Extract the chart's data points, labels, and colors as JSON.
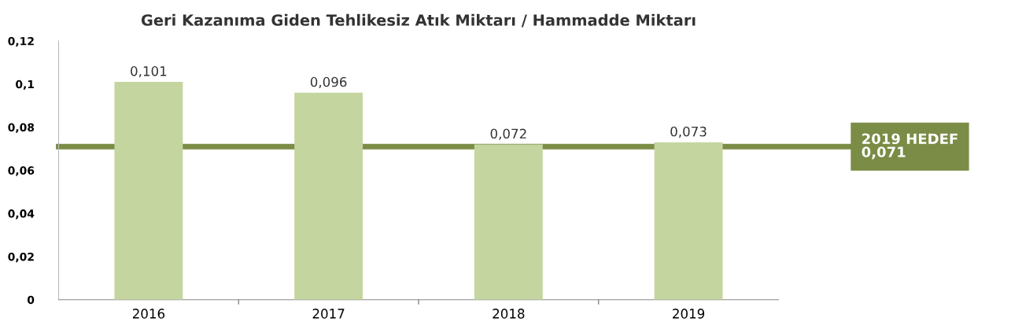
{
  "chart_data": {
    "type": "bar",
    "title": "Geri Kazanıma Giden Tehlikesiz Atık Miktarı / Hammadde Miktarı",
    "categories": [
      "2016",
      "2017",
      "2018",
      "2019"
    ],
    "values": [
      0.101,
      0.096,
      0.072,
      0.073
    ],
    "value_labels": [
      "0,101",
      "0,096",
      "0,072",
      "0,073"
    ],
    "color": "#c5d5a0",
    "ylim": [
      0,
      0.12
    ],
    "yticks": [
      {
        "value": 0,
        "label": "0"
      },
      {
        "value": 0.02,
        "label": "0,02"
      },
      {
        "value": 0.04,
        "label": "0,04"
      },
      {
        "value": 0.06,
        "label": "0,06"
      },
      {
        "value": 0.08,
        "label": "0,08"
      },
      {
        "value": 0.1,
        "label": "0,1"
      },
      {
        "value": 0.12,
        "label": "0,12"
      }
    ],
    "ref_lines": [
      {
        "axis": "y",
        "value": 0.071,
        "label": "2019 HEDEF\n0,071",
        "color": "#7a8c45"
      }
    ],
    "grid": false,
    "legend": false
  }
}
